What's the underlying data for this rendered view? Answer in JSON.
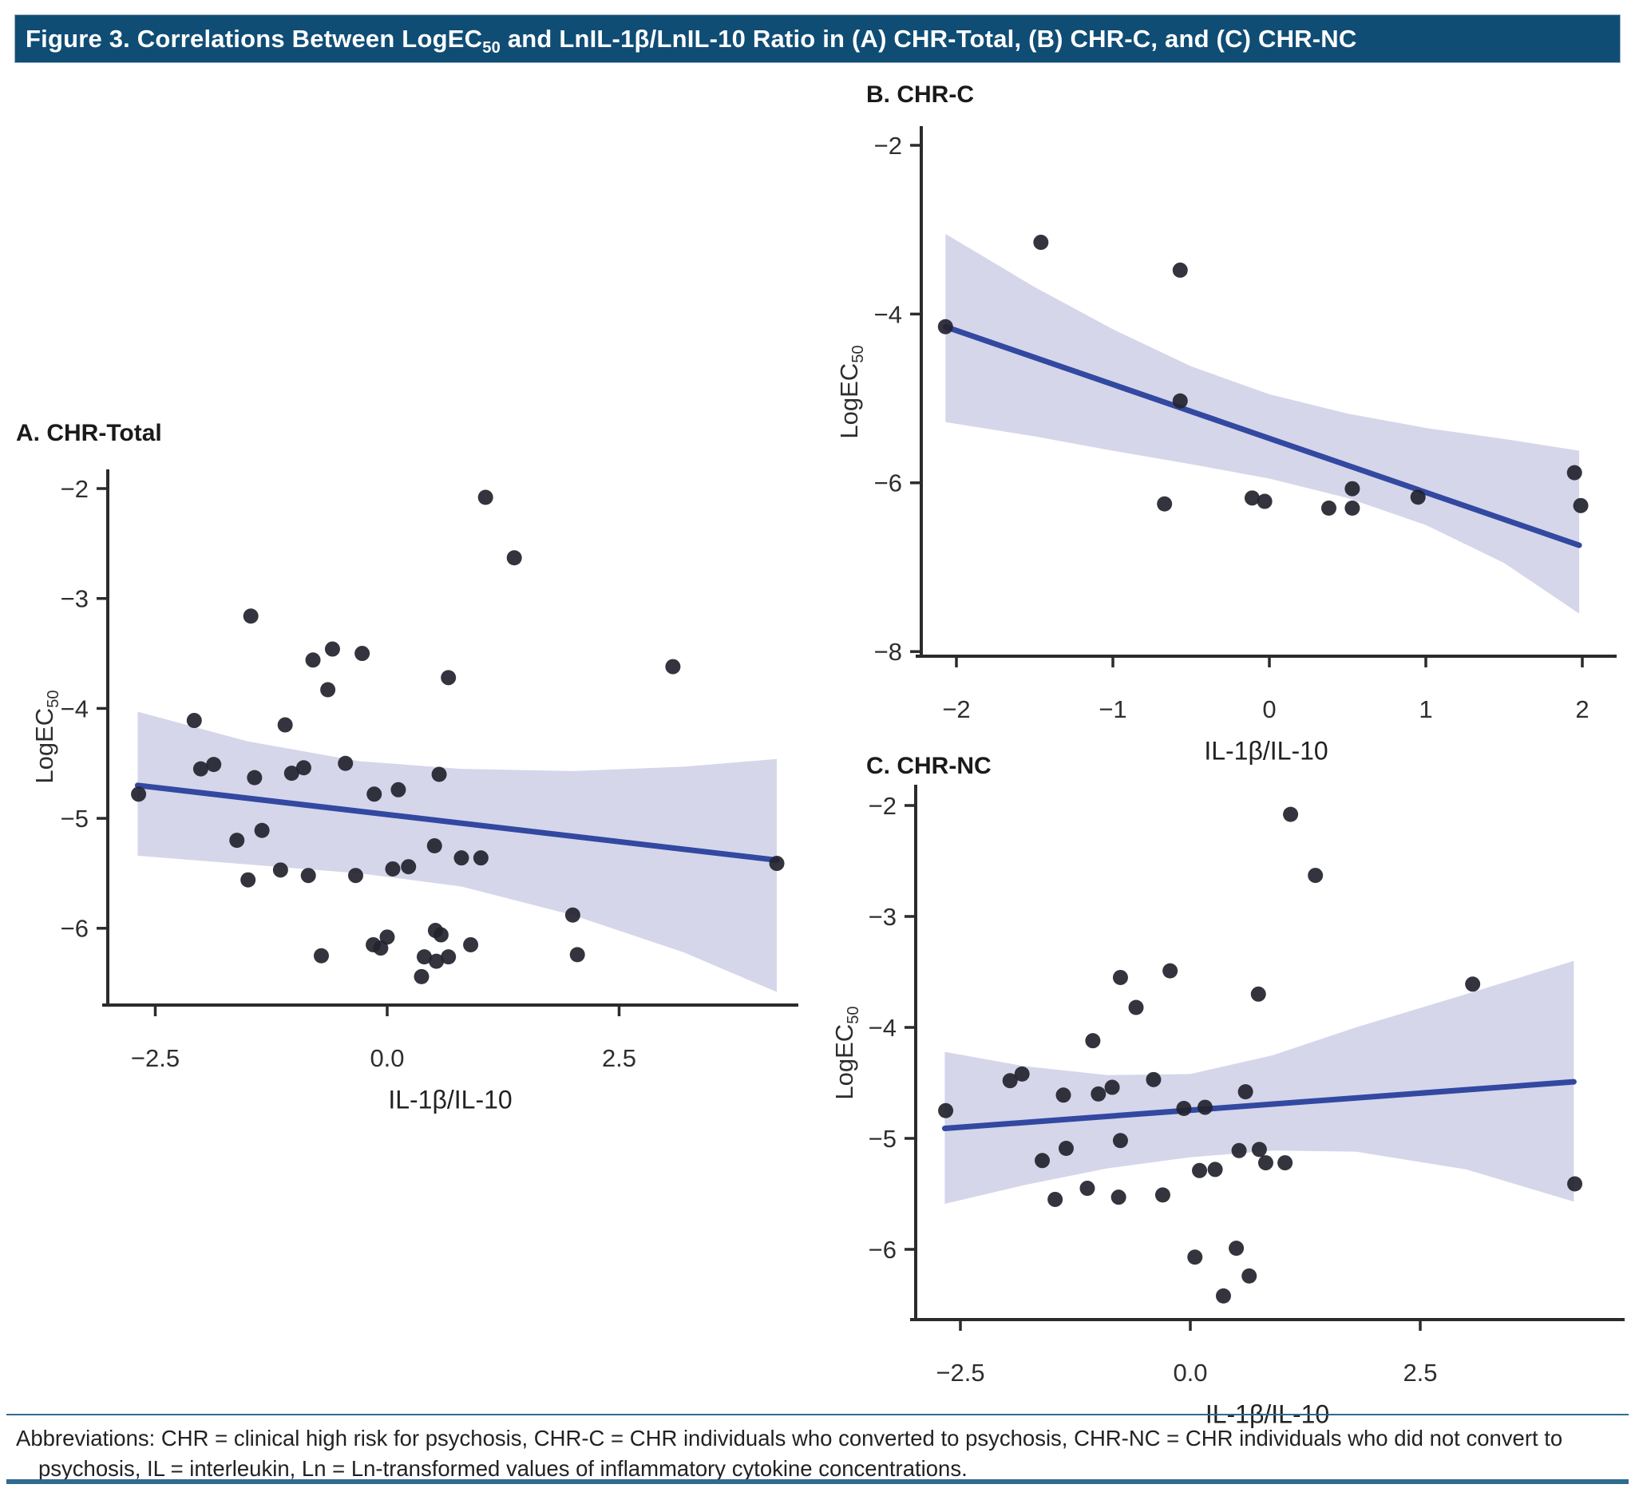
{
  "title_bar": {
    "text_before_sub": "Figure 3. Correlations Between LogEC",
    "sub": "50",
    "text_after_sub": " and LnIL-1β/LnIL-10 Ratio in (A) CHR-Total, (B) CHR-C, and (C) CHR-NC",
    "bg_color": "#0f4d75",
    "text_color": "#ffffff"
  },
  "colors": {
    "band": "#d5d6ea",
    "regression_line": "#3348a0",
    "point": "#23232e",
    "axis": "#2b2b2b",
    "tick_text": "#2e2e2e",
    "footer_rule": "#2f6b8e",
    "panel_title_text": "#1a1a1a"
  },
  "chart_data": [
    {
      "id": "A",
      "type": "scatter",
      "title": "A. CHR-Total",
      "xlabel": "IL-1β/IL-10",
      "ylabel_main": "LogEC",
      "ylabel_sub": "50",
      "xlim": [
        -3.05,
        4.45
      ],
      "ylim": [
        -6.95,
        -1.8
      ],
      "grid": false,
      "legend": "none",
      "x_ticks": [
        {
          "v": -2.5,
          "label": "−2.5"
        },
        {
          "v": 0.0,
          "label": "0.0"
        },
        {
          "v": 2.5,
          "label": "2.5"
        }
      ],
      "y_ticks": [
        {
          "v": -2,
          "label": "−2"
        },
        {
          "v": -3,
          "label": "−3"
        },
        {
          "v": -4,
          "label": "−4"
        },
        {
          "v": -5,
          "label": "−5"
        },
        {
          "v": -6,
          "label": "−6"
        }
      ],
      "points": [
        [
          1.06,
          -2.08
        ],
        [
          1.37,
          -2.63
        ],
        [
          -1.47,
          -3.16
        ],
        [
          -0.59,
          -3.46
        ],
        [
          -0.27,
          -3.5
        ],
        [
          -0.8,
          -3.56
        ],
        [
          3.08,
          -3.62
        ],
        [
          0.66,
          -3.72
        ],
        [
          -0.64,
          -3.83
        ],
        [
          -2.08,
          -4.11
        ],
        [
          -1.1,
          -4.15
        ],
        [
          -2.01,
          -4.55
        ],
        [
          -1.87,
          -4.51
        ],
        [
          -1.43,
          -4.63
        ],
        [
          -1.03,
          -4.59
        ],
        [
          -0.9,
          -4.54
        ],
        [
          -0.45,
          -4.5
        ],
        [
          -0.14,
          -4.78
        ],
        [
          0.12,
          -4.74
        ],
        [
          -2.68,
          -4.78
        ],
        [
          0.56,
          -4.6
        ],
        [
          0.51,
          -5.25
        ],
        [
          0.06,
          -5.46
        ],
        [
          0.23,
          -5.44
        ],
        [
          0.8,
          -5.36
        ],
        [
          1.01,
          -5.36
        ],
        [
          -1.62,
          -5.2
        ],
        [
          -1.35,
          -5.11
        ],
        [
          -1.5,
          -5.56
        ],
        [
          -1.15,
          -5.47
        ],
        [
          -0.85,
          -5.52
        ],
        [
          -0.34,
          -5.52
        ],
        [
          2.0,
          -5.88
        ],
        [
          0.52,
          -6.02
        ],
        [
          0.58,
          -6.06
        ],
        [
          0.0,
          -6.08
        ],
        [
          -0.15,
          -6.15
        ],
        [
          -0.07,
          -6.18
        ],
        [
          0.4,
          -6.26
        ],
        [
          0.53,
          -6.3
        ],
        [
          0.66,
          -6.26
        ],
        [
          0.9,
          -6.15
        ],
        [
          2.05,
          -6.24
        ],
        [
          0.37,
          -6.44
        ],
        [
          -0.71,
          -6.25
        ],
        [
          4.2,
          -5.41
        ]
      ],
      "regression": {
        "x1": -2.69,
        "y1": -4.7,
        "x2": 4.2,
        "y2": -5.38
      },
      "ci_band": {
        "top": [
          [
            -2.69,
            -4.03
          ],
          [
            -1.5,
            -4.3
          ],
          [
            -0.3,
            -4.48
          ],
          [
            0.8,
            -4.55
          ],
          [
            2.0,
            -4.57
          ],
          [
            3.2,
            -4.53
          ],
          [
            4.2,
            -4.46
          ]
        ],
        "bottom": [
          [
            -2.69,
            -5.34
          ],
          [
            -1.5,
            -5.42
          ],
          [
            -0.3,
            -5.5
          ],
          [
            0.8,
            -5.62
          ],
          [
            2.0,
            -5.88
          ],
          [
            3.2,
            -6.22
          ],
          [
            4.2,
            -6.58
          ]
        ]
      }
    },
    {
      "id": "B",
      "type": "scatter",
      "title": "B. CHR-C",
      "xlabel": "IL-1β/IL-10",
      "ylabel_main": "LogEC",
      "ylabel_sub": "50",
      "xlim": [
        -2.26,
        2.22
      ],
      "ylim": [
        -8.1,
        -1.75
      ],
      "grid": false,
      "legend": "none",
      "x_ticks": [
        {
          "v": -2,
          "label": "−2"
        },
        {
          "v": -1,
          "label": "−1"
        },
        {
          "v": 0,
          "label": "0"
        },
        {
          "v": 1,
          "label": "1"
        },
        {
          "v": 2,
          "label": "2"
        }
      ],
      "y_ticks": [
        {
          "v": -2,
          "label": "−2"
        },
        {
          "v": -4,
          "label": "−4"
        },
        {
          "v": -6,
          "label": "−6"
        },
        {
          "v": -8,
          "label": "−8"
        }
      ],
      "points": [
        [
          -2.07,
          -4.15
        ],
        [
          -1.46,
          -3.15
        ],
        [
          -0.57,
          -3.48
        ],
        [
          -0.57,
          -5.03
        ],
        [
          -0.67,
          -6.25
        ],
        [
          -0.11,
          -6.18
        ],
        [
          -0.03,
          -6.22
        ],
        [
          0.38,
          -6.3
        ],
        [
          0.53,
          -6.07
        ],
        [
          0.53,
          -6.3
        ],
        [
          0.95,
          -6.17
        ],
        [
          1.95,
          -5.88
        ],
        [
          1.99,
          -6.27
        ]
      ],
      "regression": {
        "x1": -2.07,
        "y1": -4.15,
        "x2": 1.98,
        "y2": -6.74
      },
      "ci_band": {
        "top": [
          [
            -2.07,
            -3.05
          ],
          [
            -1.5,
            -3.68
          ],
          [
            -1.0,
            -4.18
          ],
          [
            -0.5,
            -4.62
          ],
          [
            0.0,
            -4.95
          ],
          [
            0.5,
            -5.18
          ],
          [
            1.0,
            -5.35
          ],
          [
            1.5,
            -5.48
          ],
          [
            1.98,
            -5.62
          ]
        ],
        "bottom": [
          [
            -2.07,
            -5.28
          ],
          [
            -1.5,
            -5.45
          ],
          [
            -1.0,
            -5.62
          ],
          [
            -0.5,
            -5.78
          ],
          [
            0.0,
            -5.95
          ],
          [
            0.5,
            -6.18
          ],
          [
            1.0,
            -6.5
          ],
          [
            1.5,
            -6.95
          ],
          [
            1.98,
            -7.55
          ]
        ]
      }
    },
    {
      "id": "C",
      "type": "scatter",
      "title": "C. CHR-NC",
      "xlabel": "IL-1β/IL-10",
      "ylabel_main": "LogEC",
      "ylabel_sub": "50",
      "xlim": [
        -3.05,
        4.72
      ],
      "ylim": [
        -6.75,
        -1.8
      ],
      "grid": false,
      "legend": "none",
      "x_ticks": [
        {
          "v": -2.5,
          "label": "−2.5"
        },
        {
          "v": 0.0,
          "label": "0.0"
        },
        {
          "v": 2.5,
          "label": "2.5"
        }
      ],
      "y_ticks": [
        {
          "v": -2,
          "label": "−2"
        },
        {
          "v": -3,
          "label": "−3"
        },
        {
          "v": -4,
          "label": "−4"
        },
        {
          "v": -5,
          "label": "−5"
        },
        {
          "v": -6,
          "label": "−6"
        }
      ],
      "points": [
        [
          1.09,
          -2.08
        ],
        [
          1.36,
          -2.63
        ],
        [
          -0.76,
          -3.55
        ],
        [
          -0.22,
          -3.49
        ],
        [
          -0.59,
          -3.82
        ],
        [
          0.74,
          -3.7
        ],
        [
          3.07,
          -3.61
        ],
        [
          -1.06,
          -4.12
        ],
        [
          -1.96,
          -4.48
        ],
        [
          -1.83,
          -4.42
        ],
        [
          -1.38,
          -4.61
        ],
        [
          -1.0,
          -4.6
        ],
        [
          -0.85,
          -4.54
        ],
        [
          -0.4,
          -4.47
        ],
        [
          0.6,
          -4.58
        ],
        [
          -0.07,
          -4.73
        ],
        [
          0.16,
          -4.72
        ],
        [
          -2.66,
          -4.75
        ],
        [
          -0.76,
          -5.02
        ],
        [
          -1.35,
          -5.09
        ],
        [
          -1.61,
          -5.2
        ],
        [
          -1.12,
          -5.45
        ],
        [
          -1.47,
          -5.55
        ],
        [
          -0.78,
          -5.53
        ],
        [
          -0.3,
          -5.51
        ],
        [
          0.1,
          -5.29
        ],
        [
          0.27,
          -5.28
        ],
        [
          0.53,
          -5.11
        ],
        [
          0.75,
          -5.1
        ],
        [
          0.82,
          -5.22
        ],
        [
          1.03,
          -5.22
        ],
        [
          0.05,
          -6.07
        ],
        [
          0.5,
          -5.99
        ],
        [
          0.64,
          -6.24
        ],
        [
          0.36,
          -6.42
        ],
        [
          4.18,
          -5.41
        ]
      ],
      "regression": {
        "x1": -2.67,
        "y1": -4.91,
        "x2": 4.17,
        "y2": -4.49
      },
      "ci_band": {
        "top": [
          [
            -2.67,
            -4.22
          ],
          [
            -1.8,
            -4.35
          ],
          [
            -0.9,
            -4.43
          ],
          [
            0.0,
            -4.42
          ],
          [
            0.9,
            -4.25
          ],
          [
            1.8,
            -4.0
          ],
          [
            3.0,
            -3.7
          ],
          [
            4.17,
            -3.4
          ]
        ],
        "bottom": [
          [
            -2.67,
            -5.59
          ],
          [
            -1.8,
            -5.42
          ],
          [
            -0.9,
            -5.27
          ],
          [
            0.0,
            -5.17
          ],
          [
            0.9,
            -5.11
          ],
          [
            1.8,
            -5.12
          ],
          [
            3.0,
            -5.28
          ],
          [
            4.17,
            -5.57
          ]
        ]
      }
    }
  ],
  "footer": {
    "line1": "Abbreviations: CHR = clinical high risk for psychosis, CHR-C = CHR individuals who converted to psychosis, CHR-NC = CHR individuals who did not convert to",
    "line2": "psychosis, IL = interleukin, Ln = Ln-transformed values of inflammatory cytokine concentrations."
  }
}
